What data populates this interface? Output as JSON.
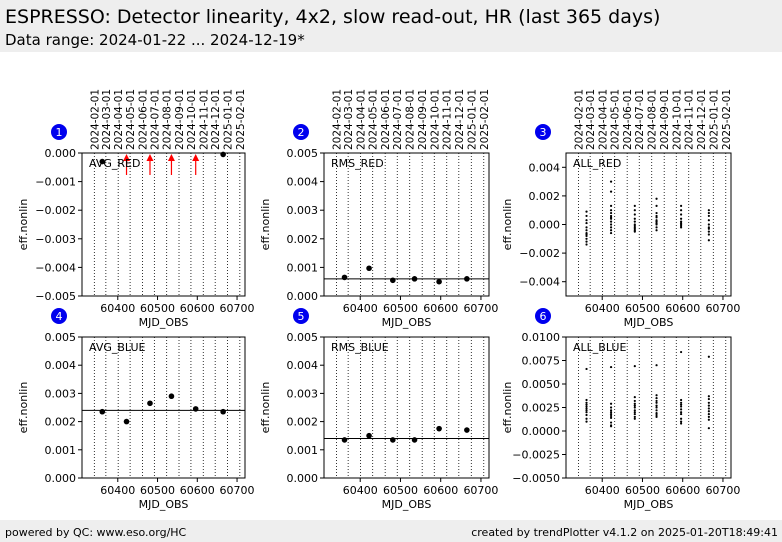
{
  "header": {
    "title": "ESPRESSO: Detector linearity, 4x2, slow read-out, HR (last 365 days)",
    "subtitle": "Data range: 2024-01-22 ... 2024-12-19*"
  },
  "footer": {
    "left": "powered by QC: www.eso.org/HC",
    "right": "created by trendPlotter v4.1.2 on 2025-01-20T18:49:41"
  },
  "colors": {
    "marker": "#000000",
    "badge": "#0000ee",
    "outlier_arrow": "#ff0000",
    "header_bg": "#eeeeee"
  },
  "date_ticks": [
    "2024-02-01",
    "2024-03-01",
    "2024-04-01",
    "2024-05-01",
    "2024-06-01",
    "2024-07-01",
    "2024-08-01",
    "2024-09-01",
    "2024-10-01",
    "2024-11-01",
    "2024-12-01",
    "2025-01-01",
    "2025-02-01"
  ],
  "date_tick_mjd": [
    60341,
    60370,
    60401,
    60431,
    60462,
    60492,
    60523,
    60554,
    60584,
    60615,
    60645,
    60676,
    60707
  ],
  "chart_data": [
    {
      "id": "1",
      "type": "scatter",
      "label": "AVG_RED",
      "xlabel": "MJD_OBS",
      "ylabel": "eff.nonlin",
      "xlim": [
        60310,
        60720
      ],
      "ylim": [
        -0.005,
        0.0
      ],
      "yticks": [
        -0.005,
        -0.004,
        -0.003,
        -0.002,
        -0.001,
        0.0
      ],
      "ytick_labels": [
        "−0.005",
        "−0.004",
        "−0.003",
        "−0.002",
        "−0.001",
        "0.000"
      ],
      "xticks": [
        60400,
        60500,
        60600,
        60700
      ],
      "x": [
        60361,
        60665
      ],
      "y": [
        -0.0003,
        -5e-05
      ],
      "ref": null,
      "outlier_arrows_x": [
        60422,
        60481,
        60535,
        60596
      ],
      "show_xlabel": true,
      "show_dates": true
    },
    {
      "id": "2",
      "type": "scatter",
      "label": "RMS_RED",
      "xlabel": "MJD_OBS",
      "ylabel": "eff.nonlin",
      "xlim": [
        60310,
        60720
      ],
      "ylim": [
        0.0,
        0.005
      ],
      "yticks": [
        0.0,
        0.001,
        0.002,
        0.003,
        0.004,
        0.005
      ],
      "ytick_labels": [
        "0.000",
        "0.001",
        "0.002",
        "0.003",
        "0.004",
        "0.005"
      ],
      "xticks": [
        60400,
        60500,
        60600,
        60700
      ],
      "x": [
        60361,
        60422,
        60481,
        60535,
        60596,
        60665
      ],
      "y": [
        0.00065,
        0.00097,
        0.00055,
        0.0006,
        0.0005,
        0.0006
      ],
      "ref": 0.0006,
      "show_xlabel": true,
      "show_dates": true
    },
    {
      "id": "3",
      "type": "scatter",
      "label": "ALL_RED",
      "xlabel": "MJD_OBS",
      "ylabel": "eff.nonlin",
      "xlim": [
        60310,
        60720
      ],
      "ylim": [
        -0.005,
        0.005
      ],
      "yticks": [
        -0.004,
        -0.002,
        0.0,
        0.002,
        0.004
      ],
      "ytick_labels": [
        "−0.004",
        "−0.002",
        "0.000",
        "0.002",
        "0.004"
      ],
      "xticks": [
        60400,
        60500,
        60600,
        60700
      ],
      "x": [
        60361,
        60361,
        60361,
        60361,
        60361,
        60361,
        60361,
        60361,
        60361,
        60361,
        60361,
        60361,
        60422,
        60422,
        60422,
        60422,
        60422,
        60422,
        60422,
        60422,
        60422,
        60422,
        60422,
        60422,
        60422,
        60481,
        60481,
        60481,
        60481,
        60481,
        60481,
        60481,
        60481,
        60481,
        60481,
        60481,
        60535,
        60535,
        60535,
        60535,
        60535,
        60535,
        60535,
        60535,
        60535,
        60535,
        60535,
        60596,
        60596,
        60596,
        60596,
        60596,
        60596,
        60596,
        60596,
        60596,
        60665,
        60665,
        60665,
        60665,
        60665,
        60665,
        60665,
        60665,
        60665,
        60665
      ],
      "y": [
        0.0009,
        0.0006,
        0.0003,
        0.0001,
        -0.0002,
        -0.0004,
        -0.0006,
        -0.0007,
        -0.0008,
        -0.001,
        -0.0012,
        -0.0014,
        0.003,
        0.0023,
        0.0013,
        0.001,
        0.0008,
        0.0006,
        0.0005,
        0.0004,
        0.0002,
        0.0,
        -0.0002,
        -0.0004,
        -0.0006,
        0.0013,
        0.001,
        0.0007,
        0.0004,
        0.0002,
        0.0,
        -0.0001,
        -0.0002,
        -0.0003,
        -0.0004,
        -0.0005,
        0.0018,
        0.0013,
        0.0008,
        0.0006,
        0.0005,
        0.0003,
        0.0002,
        0.0001,
        0.0,
        -0.0002,
        -0.0004,
        0.0013,
        0.001,
        0.0007,
        0.0004,
        0.0002,
        0.0001,
        0.0,
        -0.0001,
        -0.0002,
        0.001,
        0.0008,
        0.0006,
        0.0003,
        0.0,
        -0.0002,
        -0.0003,
        -0.0005,
        -0.0007,
        -0.0011
      ],
      "ref": null,
      "small_points": true,
      "show_xlabel": true,
      "show_dates": true
    },
    {
      "id": "4",
      "type": "scatter",
      "label": "AVG_BLUE",
      "xlabel": "MJD_OBS",
      "ylabel": "eff.nonlin",
      "xlim": [
        60310,
        60720
      ],
      "ylim": [
        0.0,
        0.005
      ],
      "yticks": [
        0.0,
        0.001,
        0.002,
        0.003,
        0.004,
        0.005
      ],
      "ytick_labels": [
        "0.000",
        "0.001",
        "0.002",
        "0.003",
        "0.004",
        "0.005"
      ],
      "xticks": [
        60400,
        60500,
        60600,
        60700
      ],
      "x": [
        60361,
        60422,
        60481,
        60535,
        60596,
        60665
      ],
      "y": [
        0.00235,
        0.002,
        0.00265,
        0.0029,
        0.00245,
        0.00235
      ],
      "ref": 0.0024,
      "show_xlabel": true,
      "show_dates": false
    },
    {
      "id": "5",
      "type": "scatter",
      "label": "RMS_BLUE",
      "xlabel": "MJD_OBS",
      "ylabel": "eff.nonlin",
      "xlim": [
        60310,
        60720
      ],
      "ylim": [
        0.0,
        0.005
      ],
      "yticks": [
        0.0,
        0.001,
        0.002,
        0.003,
        0.004,
        0.005
      ],
      "ytick_labels": [
        "0.000",
        "0.001",
        "0.002",
        "0.003",
        "0.004",
        "0.005"
      ],
      "xticks": [
        60400,
        60500,
        60600,
        60700
      ],
      "x": [
        60361,
        60422,
        60481,
        60535,
        60596,
        60665
      ],
      "y": [
        0.00135,
        0.0015,
        0.00135,
        0.00135,
        0.00175,
        0.0017
      ],
      "ref": 0.0014,
      "show_xlabel": true,
      "show_dates": false
    },
    {
      "id": "6",
      "type": "scatter",
      "label": "ALL_BLUE",
      "xlabel": "MJD_OBS",
      "ylabel": "eff.nonlin",
      "xlim": [
        60310,
        60720
      ],
      "ylim": [
        -0.005,
        0.01
      ],
      "yticks": [
        -0.005,
        -0.0025,
        0.0,
        0.0025,
        0.005,
        0.0075,
        0.01
      ],
      "ytick_labels": [
        "−0.0050",
        "−0.0025",
        "0.0000",
        "0.0025",
        "0.0050",
        "0.0075",
        "0.0100"
      ],
      "xticks": [
        60400,
        60500,
        60600,
        60700
      ],
      "x": [
        60361,
        60361,
        60361,
        60361,
        60361,
        60361,
        60361,
        60361,
        60361,
        60361,
        60361,
        60422,
        60422,
        60422,
        60422,
        60422,
        60422,
        60422,
        60422,
        60422,
        60422,
        60422,
        60481,
        60481,
        60481,
        60481,
        60481,
        60481,
        60481,
        60481,
        60481,
        60481,
        60481,
        60535,
        60535,
        60535,
        60535,
        60535,
        60535,
        60535,
        60535,
        60535,
        60535,
        60535,
        60596,
        60596,
        60596,
        60596,
        60596,
        60596,
        60596,
        60596,
        60596,
        60596,
        60596,
        60665,
        60665,
        60665,
        60665,
        60665,
        60665,
        60665,
        60665,
        60665,
        60665,
        60665
      ],
      "y": [
        0.0066,
        0.0033,
        0.003,
        0.0028,
        0.0026,
        0.0024,
        0.0022,
        0.002,
        0.0017,
        0.0013,
        0.001,
        0.0068,
        0.0029,
        0.0025,
        0.0022,
        0.002,
        0.0018,
        0.0016,
        0.0014,
        0.0009,
        0.0006,
        0.0005,
        0.0069,
        0.0036,
        0.0032,
        0.0029,
        0.0027,
        0.0025,
        0.0022,
        0.002,
        0.0018,
        0.0015,
        0.0013,
        0.007,
        0.0038,
        0.0035,
        0.0032,
        0.003,
        0.0027,
        0.0025,
        0.0022,
        0.0019,
        0.0017,
        0.0015,
        0.0084,
        0.0033,
        0.003,
        0.0028,
        0.0026,
        0.0023,
        0.002,
        0.0018,
        0.0013,
        0.001,
        0.0008,
        0.0079,
        0.0037,
        0.0034,
        0.003,
        0.0027,
        0.0024,
        0.0021,
        0.0018,
        0.0015,
        0.0012,
        0.0003
      ],
      "ref": null,
      "small_points": true,
      "show_xlabel": true,
      "show_dates": false
    }
  ]
}
